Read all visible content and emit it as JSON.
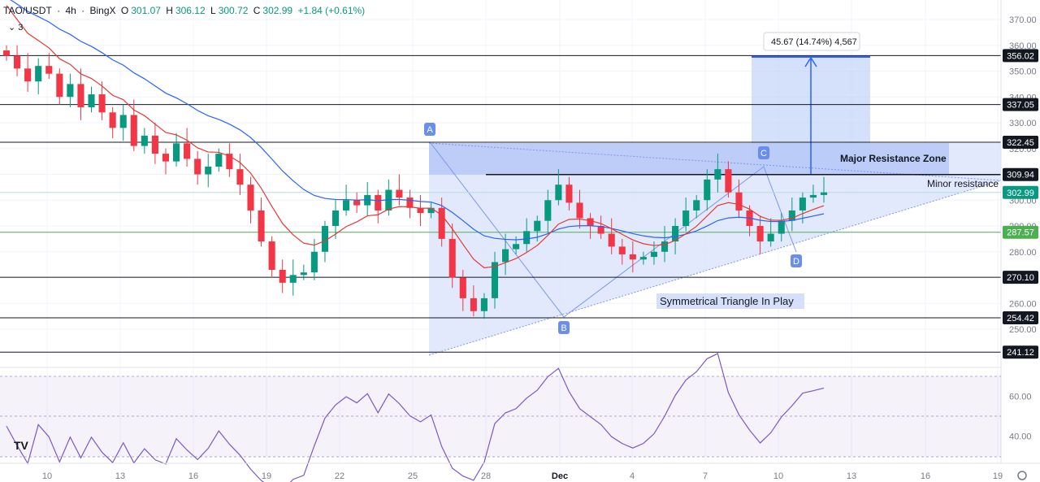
{
  "header": {
    "symbol": "TAO/USDT",
    "interval": "4h",
    "exchange": "BingX",
    "open_label": "O",
    "open": "301.07",
    "high_label": "H",
    "high": "306.12",
    "low_label": "L",
    "low": "300.72",
    "close_label": "C",
    "close": "302.99",
    "change": "+1.84 (+0.61%)",
    "indicator_count": "3"
  },
  "colors": {
    "up": "#089981",
    "down": "#f23645",
    "ema_fast": "#e53935",
    "ema_slow": "#2962ff",
    "rsi": "#7e57c2",
    "triangle_fill": "#c9d6f5",
    "resistance_fill": "#b3c7f7"
  },
  "chart_data": {
    "type": "candlestick",
    "yaxis_ticks": [
      "370.00",
      "360.00",
      "350.00",
      "340.00",
      "330.00",
      "320.00",
      "310.00",
      "300.00",
      "290.00",
      "280.00",
      "270.00",
      "260.00",
      "250.00"
    ],
    "xaxis_ticks": [
      "10",
      "13",
      "16",
      "19",
      "22",
      "25",
      "28",
      "Dec",
      "4",
      "7",
      "10",
      "13",
      "16",
      "19"
    ],
    "price_levels": [
      {
        "value": 356.02,
        "label": "356.02"
      },
      {
        "value": 337.05,
        "label": "337.05"
      },
      {
        "value": 322.45,
        "label": "322.45"
      },
      {
        "value": 309.94,
        "label": "309.94"
      },
      {
        "value": 302.99,
        "label": "302.99"
      },
      {
        "value": 287.57,
        "label": "287.57"
      },
      {
        "value": 270.1,
        "label": "270.10"
      },
      {
        "value": 254.42,
        "label": "254.42"
      },
      {
        "value": 241.12,
        "label": "241.12"
      }
    ],
    "annotations": {
      "major_resistance": "Major Resistance Zone",
      "minor_resistance": "Minor resistance",
      "triangle": "Symmetrical Triangle In Play",
      "measure": "45.67 (14.74%) 4,567",
      "points": [
        "A",
        "B",
        "C",
        "D"
      ]
    },
    "rsi_ticks": [
      "60.00",
      "40.00"
    ],
    "ylim": [
      235,
      375
    ],
    "close_series": [
      356,
      351,
      346,
      352,
      349,
      340,
      345,
      336,
      341,
      334,
      328,
      333,
      321,
      325,
      318,
      315,
      322,
      316,
      310,
      313,
      318,
      312,
      306,
      296,
      284,
      273,
      268,
      271,
      272,
      280,
      290,
      296,
      300,
      298,
      302,
      296,
      304,
      301,
      297,
      295,
      297,
      285,
      270,
      262,
      257,
      262,
      276,
      281,
      283,
      288,
      292,
      300,
      306,
      299,
      293,
      290,
      287,
      282,
      279,
      277,
      278,
      280,
      284,
      290,
      296,
      300,
      308,
      312,
      303,
      296,
      290,
      284,
      287,
      292,
      296,
      301,
      302,
      303
    ]
  },
  "logo": "TV"
}
